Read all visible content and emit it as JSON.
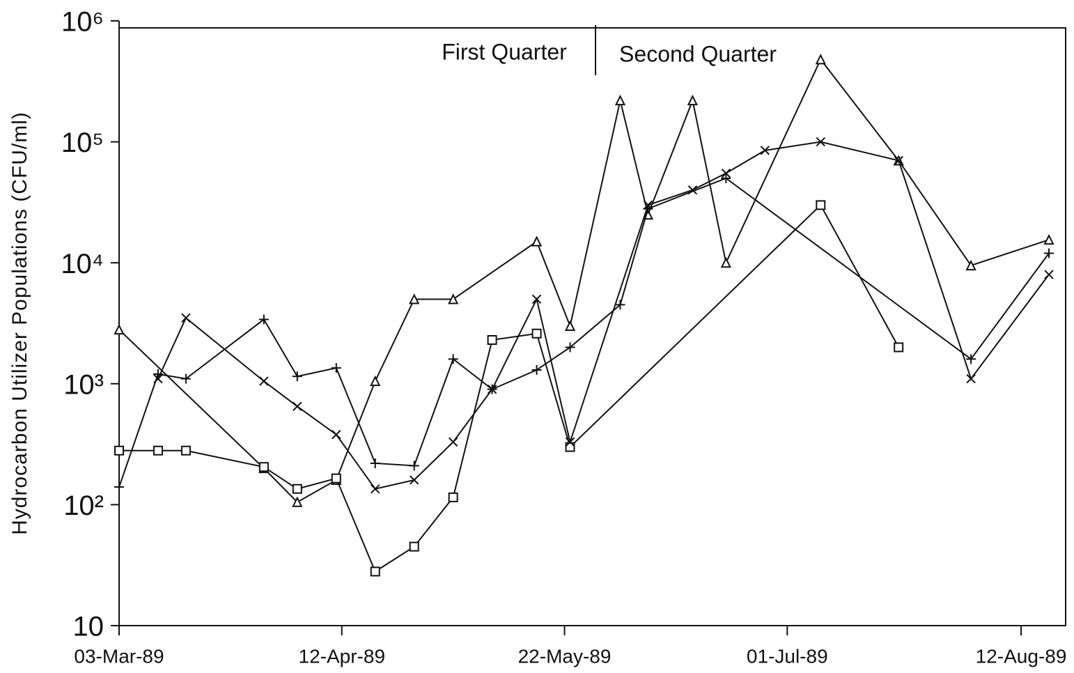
{
  "chart_data": {
    "type": "line",
    "y_label": "Hydrocarbon Utilizer Populations (CFU/ml)",
    "annotations": [
      "First Quarter",
      "Second Quarter"
    ],
    "log_scale_y": true,
    "xlim": [
      "1989-03-03",
      "1989-08-20"
    ],
    "xticks": [
      {
        "value": "1989-03-03",
        "label": "03-Mar-89"
      },
      {
        "value": "1989-04-12",
        "label": "12-Apr-89"
      },
      {
        "value": "1989-05-22",
        "label": "22-May-89"
      },
      {
        "value": "1989-07-01",
        "label": "01-Jul-89"
      },
      {
        "value": "1989-08-12",
        "label": "12-Aug-89"
      }
    ],
    "ylim": [
      10,
      1000000
    ],
    "yticks": [
      10,
      {
        "value": 100,
        "label": "10²"
      },
      {
        "value": 1000,
        "label": "10³"
      },
      {
        "value": 10000,
        "label": "10⁴"
      },
      {
        "value": 100000,
        "label": "10⁵"
      },
      {
        "value": 1000000,
        "label": "10⁶"
      }
    ],
    "series": [
      {
        "marker": "triangle",
        "color": "#111111",
        "x": [
          "1989-03-03",
          "1989-03-29",
          "1989-04-04",
          "1989-04-11",
          "1989-04-18",
          "1989-04-25",
          "1989-05-02",
          "1989-05-17",
          "1989-05-23",
          "1989-06-01",
          "1989-06-06",
          "1989-06-14",
          "1989-06-20",
          "1989-07-07",
          "1989-07-21",
          "1989-08-03",
          "1989-08-17"
        ],
        "values": [
          2800,
          200,
          105,
          160,
          1050,
          5000,
          5000,
          15000,
          3000,
          220000,
          25000,
          220000,
          10000,
          480000,
          70000,
          9500,
          15500
        ]
      },
      {
        "marker": "square",
        "color": "#111111",
        "x": [
          "1989-03-03",
          "1989-03-10",
          "1989-03-15",
          "1989-03-29",
          "1989-04-04",
          "1989-04-11",
          "1989-04-18",
          "1989-04-25",
          "1989-05-02",
          "1989-05-09",
          "1989-05-17",
          "1989-05-23",
          "1989-07-07",
          "1989-07-21"
        ],
        "values": [
          280,
          280,
          280,
          205,
          135,
          165,
          28,
          45,
          115,
          2300,
          2600,
          300,
          30000,
          2000
        ]
      },
      {
        "marker": "x",
        "color": "#111111",
        "x": [
          "1989-03-10",
          "1989-03-15",
          "1989-03-29",
          "1989-04-04",
          "1989-04-11",
          "1989-04-18",
          "1989-04-25",
          "1989-05-02",
          "1989-05-09",
          "1989-05-17",
          "1989-05-23",
          "1989-06-06",
          "1989-06-14",
          "1989-06-20",
          "1989-06-27",
          "1989-07-07",
          "1989-07-21",
          "1989-08-03",
          "1989-08-17"
        ],
        "values": [
          1100,
          3500,
          1050,
          650,
          380,
          135,
          160,
          330,
          900,
          5000,
          330,
          30000,
          40000,
          55000,
          85000,
          100000,
          70000,
          1100,
          8000
        ]
      },
      {
        "marker": "plus",
        "color": "#111111",
        "x": [
          "1989-03-03",
          "1989-03-10",
          "1989-03-15",
          "1989-03-29",
          "1989-04-04",
          "1989-04-11",
          "1989-04-18",
          "1989-04-25",
          "1989-05-02",
          "1989-05-09",
          "1989-05-17",
          "1989-05-23",
          "1989-06-01",
          "1989-06-06",
          "1989-06-20",
          "1989-08-03",
          "1989-08-17"
        ],
        "values": [
          140,
          1200,
          1100,
          3400,
          1150,
          1350,
          220,
          210,
          1600,
          900,
          1300,
          2000,
          4500,
          28000,
          50000,
          1600,
          12000
        ]
      }
    ]
  }
}
